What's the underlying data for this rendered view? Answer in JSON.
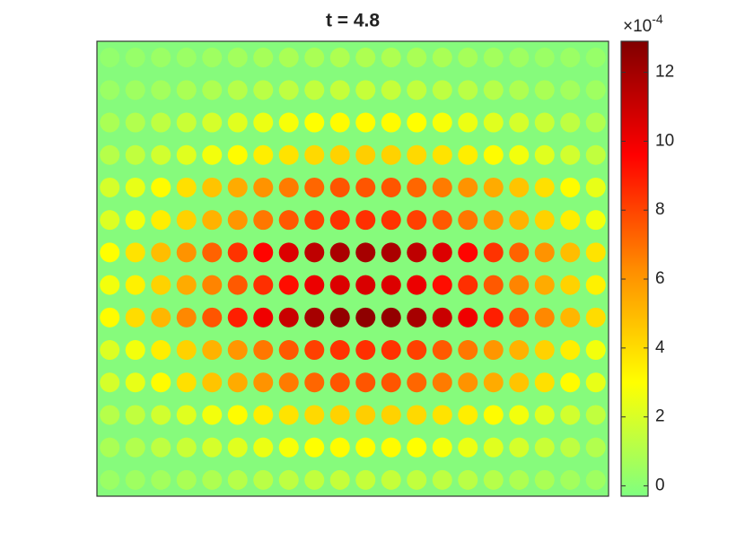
{
  "chart_data": {
    "type": "heatmap",
    "title": "t = 4.8",
    "colorbar_multiplier": {
      "base": "×10",
      "exponent": "-4"
    },
    "clim": [
      -0.3,
      12.9
    ],
    "cticks": [
      0,
      2,
      4,
      6,
      8,
      10,
      12
    ],
    "colormap": [
      "#80ff80",
      "#ffff00",
      "#ff8c00",
      "#ff0000",
      "#800000"
    ],
    "values": [
      [
        0.2,
        0.3,
        0.4,
        0.4,
        0.5,
        0.6,
        0.7,
        0.8,
        0.8,
        0.9,
        0.9,
        0.9,
        0.8,
        0.8,
        0.7,
        0.6,
        0.5,
        0.4,
        0.4,
        0.3
      ],
      [
        0.4,
        0.5,
        0.6,
        0.8,
        0.9,
        1.1,
        1.2,
        1.3,
        1.4,
        1.5,
        1.5,
        1.5,
        1.4,
        1.3,
        1.2,
        1.1,
        0.9,
        0.8,
        0.6,
        0.5
      ],
      [
        0.8,
        1.0,
        1.3,
        1.6,
        1.9,
        2.2,
        2.5,
        2.8,
        3.0,
        3.1,
        3.1,
        3.1,
        3.0,
        2.8,
        2.5,
        2.2,
        1.9,
        1.6,
        1.3,
        1.0
      ],
      [
        1.1,
        1.4,
        1.8,
        2.2,
        2.7,
        3.1,
        3.5,
        3.8,
        4.1,
        4.3,
        4.4,
        4.3,
        4.1,
        3.8,
        3.5,
        3.1,
        2.7,
        2.2,
        1.8,
        1.4
      ],
      [
        1.9,
        2.4,
        3.1,
        3.9,
        4.7,
        5.4,
        6.1,
        6.7,
        7.2,
        7.6,
        7.6,
        7.6,
        7.2,
        6.7,
        6.1,
        5.4,
        4.7,
        3.9,
        3.1,
        2.4
      ],
      [
        2.1,
        2.7,
        3.5,
        4.3,
        5.2,
        6.0,
        6.8,
        7.5,
        8.1,
        8.4,
        8.5,
        8.4,
        8.1,
        7.5,
        6.8,
        6.0,
        5.2,
        4.3,
        3.5,
        2.7
      ],
      [
        3.0,
        3.8,
        4.9,
        6.1,
        7.3,
        8.4,
        9.5,
        10.5,
        11.3,
        11.8,
        11.9,
        11.8,
        11.3,
        10.5,
        9.5,
        8.4,
        7.3,
        6.1,
        4.9,
        3.8
      ],
      [
        2.7,
        3.4,
        4.3,
        5.4,
        6.5,
        7.5,
        8.5,
        9.3,
        10.1,
        10.5,
        10.6,
        10.5,
        10.1,
        9.3,
        8.5,
        7.5,
        6.5,
        5.4,
        4.3,
        3.4
      ],
      [
        3.1,
        4.0,
        5.1,
        6.4,
        7.6,
        8.9,
        10.0,
        11.0,
        11.9,
        12.4,
        12.5,
        12.4,
        11.9,
        11.0,
        10.0,
        8.9,
        7.6,
        6.4,
        5.1,
        4.0
      ],
      [
        2.1,
        2.7,
        3.5,
        4.3,
        5.2,
        6.0,
        6.8,
        7.5,
        8.1,
        8.4,
        8.5,
        8.4,
        8.1,
        7.5,
        6.8,
        6.0,
        5.2,
        4.3,
        3.5,
        2.7
      ],
      [
        1.9,
        2.4,
        3.1,
        3.9,
        4.7,
        5.4,
        6.1,
        6.7,
        7.2,
        7.6,
        7.6,
        7.6,
        7.2,
        6.7,
        6.1,
        5.4,
        4.7,
        3.9,
        3.1,
        2.4
      ],
      [
        1.1,
        1.4,
        1.8,
        2.2,
        2.7,
        3.1,
        3.5,
        3.8,
        4.1,
        4.3,
        4.4,
        4.3,
        4.1,
        3.8,
        3.5,
        3.1,
        2.7,
        2.2,
        1.8,
        1.4
      ],
      [
        0.8,
        1.0,
        1.3,
        1.6,
        1.9,
        2.2,
        2.5,
        2.8,
        3.0,
        3.1,
        3.1,
        3.1,
        3.0,
        2.8,
        2.5,
        2.2,
        1.9,
        1.6,
        1.3,
        1.0
      ],
      [
        0.4,
        0.5,
        0.6,
        0.8,
        0.9,
        1.1,
        1.2,
        1.3,
        1.4,
        1.5,
        1.5,
        1.5,
        1.4,
        1.3,
        1.2,
        1.1,
        0.9,
        0.8,
        0.6,
        0.5
      ]
    ]
  }
}
